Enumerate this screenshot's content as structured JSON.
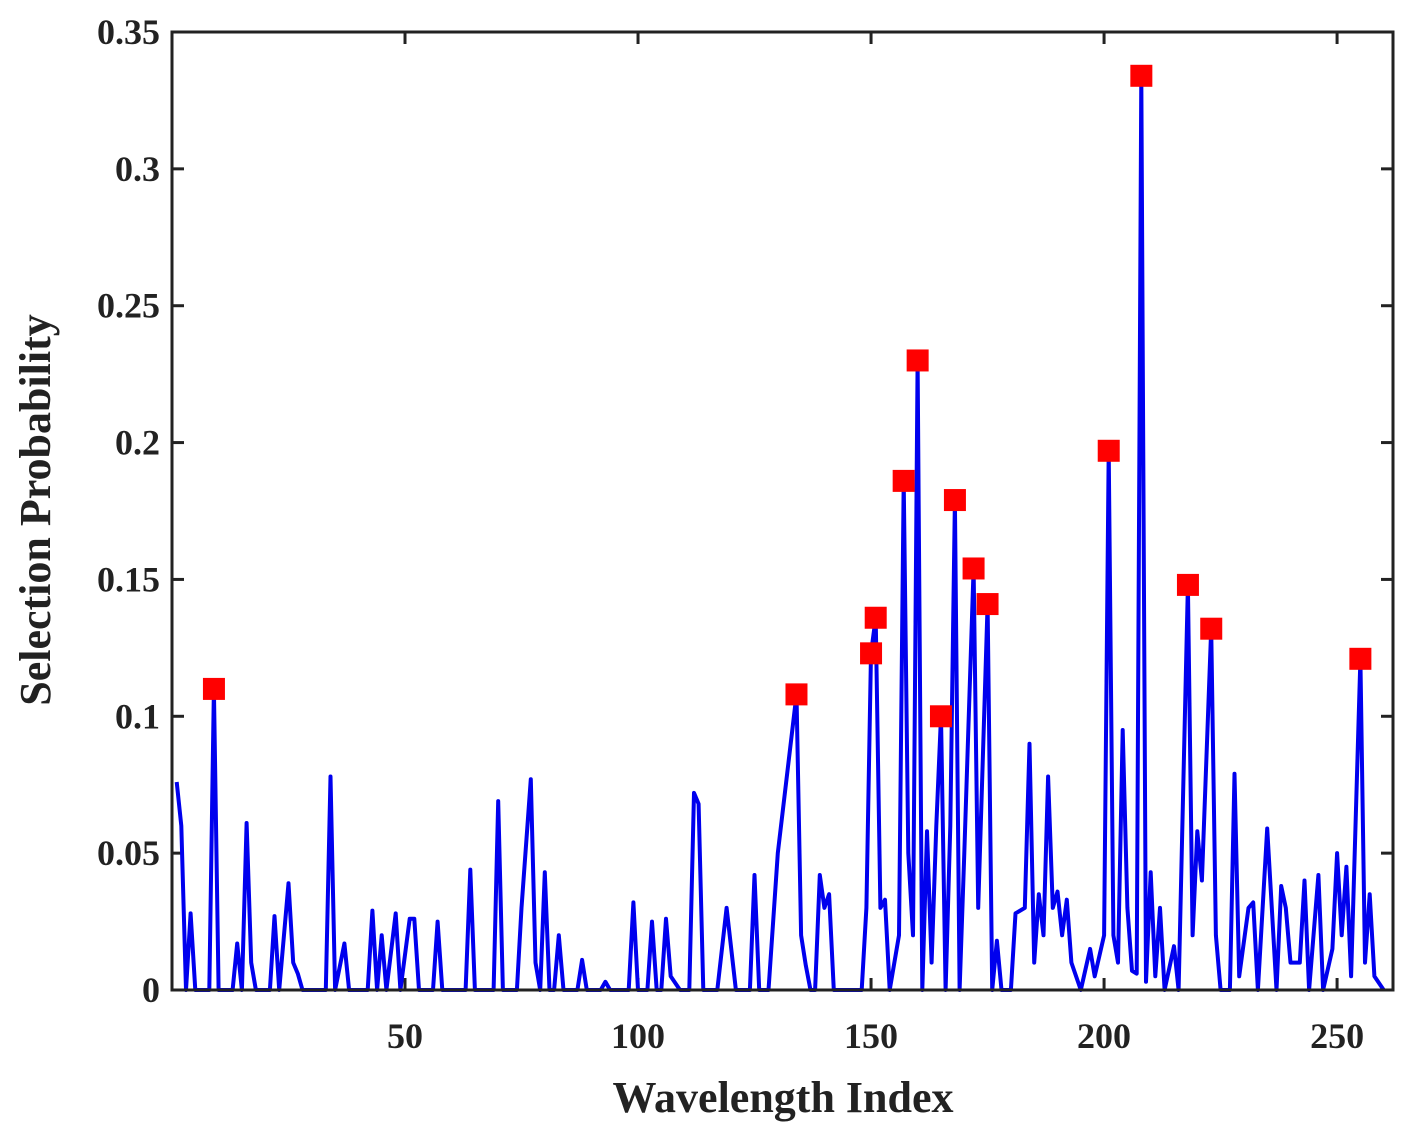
{
  "chart_data": {
    "type": "line",
    "xlabel": "Wavelength Index",
    "ylabel": "Selection Probability",
    "xlim": [
      0,
      262
    ],
    "ylim": [
      0,
      0.35
    ],
    "xticks": [
      50,
      100,
      150,
      200,
      250
    ],
    "yticks": [
      0,
      0.05,
      0.1,
      0.15,
      0.2,
      0.25,
      0.3,
      0.35
    ],
    "x": [
      1,
      2,
      3,
      4,
      5,
      8,
      9,
      10,
      13,
      14,
      15,
      16,
      17,
      18,
      21,
      22,
      23,
      25,
      26,
      27,
      28,
      33,
      34,
      35,
      37,
      38,
      42,
      43,
      44,
      45,
      46,
      48,
      49,
      51,
      52,
      53,
      56,
      57,
      58,
      63,
      64,
      65,
      69,
      70,
      71,
      74,
      75,
      77,
      78,
      79,
      80,
      81,
      82,
      83,
      84,
      87,
      88,
      89,
      92,
      93,
      94,
      98,
      99,
      100,
      102,
      103,
      104,
      105,
      106,
      107,
      109,
      111,
      112,
      113,
      114,
      117,
      119,
      121,
      124,
      125,
      126,
      128,
      130,
      134,
      135,
      136,
      137,
      138,
      139,
      140,
      141,
      142,
      148,
      149,
      150,
      151,
      152,
      153,
      154,
      156,
      157,
      158,
      159,
      160,
      161,
      162,
      163,
      164,
      165,
      166,
      167,
      168,
      169,
      170,
      172,
      173,
      175,
      176,
      177,
      178,
      180,
      181,
      183,
      184,
      185,
      186,
      187,
      188,
      189,
      190,
      191,
      192,
      193,
      195,
      197,
      198,
      200,
      201,
      202,
      203,
      204,
      205,
      206,
      207,
      208,
      209,
      210,
      211,
      212,
      213,
      215,
      216,
      218,
      219,
      220,
      221,
      223,
      224,
      225,
      227,
      228,
      229,
      231,
      232,
      233,
      235,
      236,
      237,
      238,
      239,
      240,
      242,
      243,
      244,
      246,
      247,
      249,
      250,
      251,
      252,
      253,
      255,
      256,
      257,
      258,
      260
    ],
    "series": [
      {
        "color": "#0000ee",
        "values": [
          0.076,
          0.06,
          0,
          0.028,
          0,
          0,
          0.11,
          0,
          0,
          0.017,
          0,
          0.061,
          0.01,
          0,
          0,
          0.027,
          0,
          0.039,
          0.01,
          0.006,
          0,
          0,
          0.078,
          0,
          0.017,
          0,
          0,
          0.029,
          0,
          0.02,
          0,
          0.028,
          0,
          0.026,
          0.026,
          0,
          0,
          0.025,
          0,
          0,
          0.044,
          0,
          0,
          0.069,
          0,
          0,
          0.03,
          0.077,
          0.01,
          0,
          0.043,
          0,
          0,
          0.02,
          0,
          0,
          0.011,
          0,
          0,
          0.003,
          0,
          0,
          0.032,
          0,
          0,
          0.025,
          0,
          0,
          0.026,
          0.005,
          0,
          0,
          0.072,
          0.068,
          0,
          0,
          0.03,
          0,
          0,
          0.042,
          0,
          0,
          0.05,
          0.108,
          0.02,
          0.009,
          0,
          0,
          0.042,
          0.03,
          0.035,
          0,
          0,
          0.03,
          0.123,
          0.136,
          0.03,
          0.033,
          0,
          0.02,
          0.186,
          0.05,
          0.02,
          0.23,
          0,
          0.058,
          0.01,
          0.06,
          0.1,
          0,
          0.06,
          0.179,
          0,
          0.05,
          0.154,
          0.03,
          0.141,
          0,
          0.018,
          0,
          0,
          0.028,
          0.03,
          0.09,
          0.01,
          0.035,
          0.02,
          0.078,
          0.03,
          0.036,
          0.02,
          0.033,
          0.01,
          0,
          0.015,
          0.005,
          0.02,
          0.197,
          0.02,
          0.01,
          0.095,
          0.03,
          0.007,
          0.006,
          0.334,
          0.003,
          0.043,
          0.005,
          0.03,
          0,
          0.016,
          0,
          0.148,
          0.02,
          0.058,
          0.04,
          0.132,
          0.02,
          0,
          0,
          0.079,
          0.005,
          0.03,
          0.032,
          0,
          0.059,
          0.03,
          0,
          0.038,
          0.03,
          0.01,
          0.01,
          0.04,
          0,
          0.042,
          0,
          0.015,
          0.05,
          0.02,
          0.045,
          0.005,
          0.121,
          0.01,
          0.035,
          0.005,
          0
        ]
      },
      {
        "color": "#ff0000",
        "marker": "square",
        "x": [
          9,
          134,
          150,
          151,
          157,
          160,
          165,
          168,
          172,
          175,
          201,
          208,
          218,
          223,
          255
        ],
        "values": [
          0.11,
          0.108,
          0.123,
          0.136,
          0.186,
          0.23,
          0.1,
          0.179,
          0.154,
          0.141,
          0.197,
          0.334,
          0.148,
          0.132,
          0.121
        ]
      }
    ]
  }
}
